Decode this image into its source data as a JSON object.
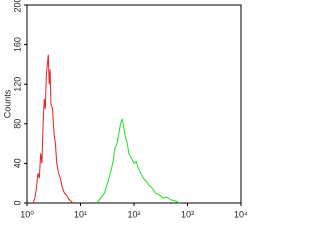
{
  "chart_data": {
    "type": "line",
    "y_label": "Counts",
    "xscale": "log",
    "xlim": [
      1,
      10000
    ],
    "ylim": [
      0,
      200
    ],
    "xticks": [
      {
        "value": 1,
        "label": "10⁰"
      },
      {
        "value": 10,
        "label": "10¹"
      },
      {
        "value": 100,
        "label": "10²"
      },
      {
        "value": 1000,
        "label": "10³"
      },
      {
        "value": 10000,
        "label": "10⁴"
      }
    ],
    "yticks": [
      0,
      40,
      80,
      120,
      160,
      200
    ],
    "series": [
      {
        "color": "#e8201f",
        "x": [
          1.3,
          1.4,
          1.5,
          1.6,
          1.7,
          1.8,
          1.9,
          2.0,
          2.1,
          2.2,
          2.3,
          2.4,
          2.5,
          2.6,
          2.7,
          2.8,
          3.0,
          3.2,
          3.4,
          3.6,
          3.9,
          4.2,
          4.6,
          5.0,
          5.5,
          6.0,
          6.6,
          7.2
        ],
        "values": [
          0,
          5,
          15,
          30,
          25,
          50,
          40,
          80,
          105,
          95,
          130,
          140,
          150,
          120,
          135,
          100,
          95,
          70,
          60,
          40,
          30,
          25,
          15,
          10,
          8,
          4,
          2,
          0
        ]
      },
      {
        "color": "#22dd22",
        "x": [
          20,
          24,
          28,
          32,
          36,
          40,
          44,
          48,
          52,
          56,
          60,
          65,
          70,
          75,
          80,
          90,
          100,
          110,
          120,
          135,
          150,
          170,
          190,
          220,
          250,
          300,
          350,
          400,
          500,
          600,
          700
        ],
        "values": [
          0,
          5,
          10,
          20,
          30,
          40,
          55,
          60,
          70,
          80,
          85,
          75,
          65,
          60,
          50,
          45,
          40,
          42,
          35,
          30,
          25,
          22,
          18,
          15,
          10,
          8,
          5,
          6,
          3,
          2,
          0
        ]
      }
    ]
  }
}
